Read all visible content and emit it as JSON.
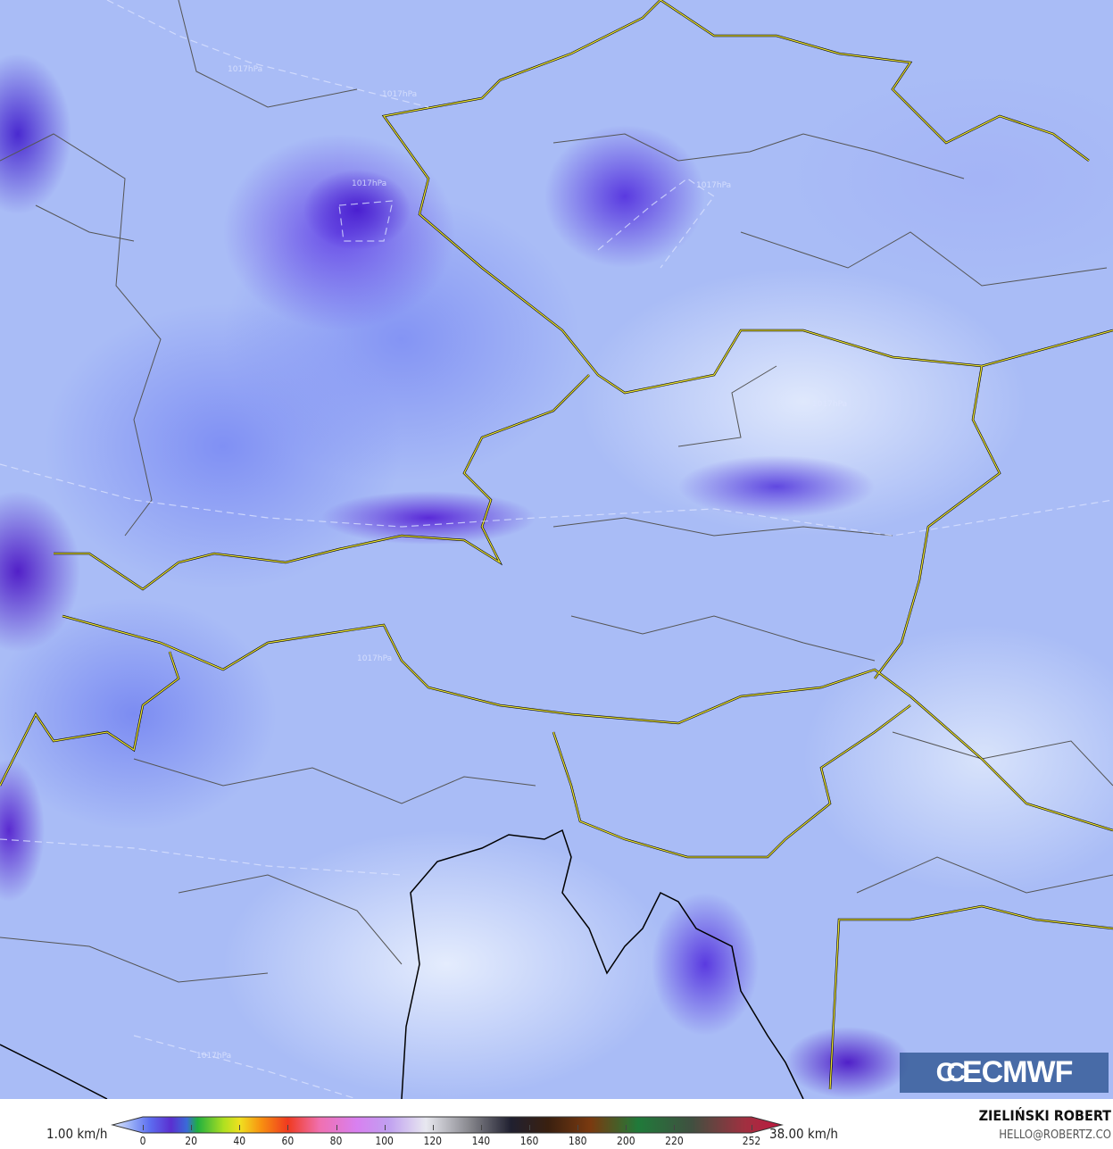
{
  "map": {
    "isobar_labels": [
      "1017hPa",
      "1017hPa",
      "1017hPa",
      "1017hPa",
      "1017hPa",
      "1017hPa",
      "1017hPa"
    ],
    "colors": {
      "land_base": "#a9bcf6",
      "border_country": "#e8e030",
      "border_region": "#555555",
      "coast": "#000000"
    }
  },
  "logo": {
    "text": "ECMWF",
    "icon": "ecmwf-logo-icon"
  },
  "legend": {
    "min_label": "1.00 km/h",
    "max_label": "38.00 km/h",
    "ticks": [
      "0",
      "20",
      "40",
      "60",
      "80",
      "100",
      "120",
      "140",
      "160",
      "180",
      "200",
      "220",
      "252"
    ],
    "tick_values": [
      0,
      20,
      40,
      60,
      80,
      100,
      120,
      140,
      160,
      180,
      200,
      220,
      252
    ],
    "colormap": [
      [
        0,
        "#e4ecfc"
      ],
      [
        8,
        "#8fa6f5"
      ],
      [
        14,
        "#5d6ef0"
      ],
      [
        22,
        "#5a2fd0"
      ],
      [
        28,
        "#3a6ad8"
      ],
      [
        32,
        "#20b040"
      ],
      [
        42,
        "#b0e020"
      ],
      [
        48,
        "#f0e020"
      ],
      [
        56,
        "#f89010"
      ],
      [
        66,
        "#f03a20"
      ],
      [
        78,
        "#f070b0"
      ],
      [
        92,
        "#d880f0"
      ],
      [
        104,
        "#c0a0f0"
      ],
      [
        118,
        "#e8e8f0"
      ],
      [
        134,
        "#8a8a90"
      ],
      [
        150,
        "#202030"
      ],
      [
        164,
        "#3a2010"
      ],
      [
        180,
        "#7a3a10"
      ],
      [
        198,
        "#207a3a"
      ],
      [
        218,
        "#405040"
      ],
      [
        238,
        "#a03040"
      ],
      [
        252,
        "#c01840"
      ]
    ]
  },
  "author": {
    "name": "ZIELIŃSKI ROBERT",
    "email": "HELLO@ROBERTZ.CO"
  }
}
